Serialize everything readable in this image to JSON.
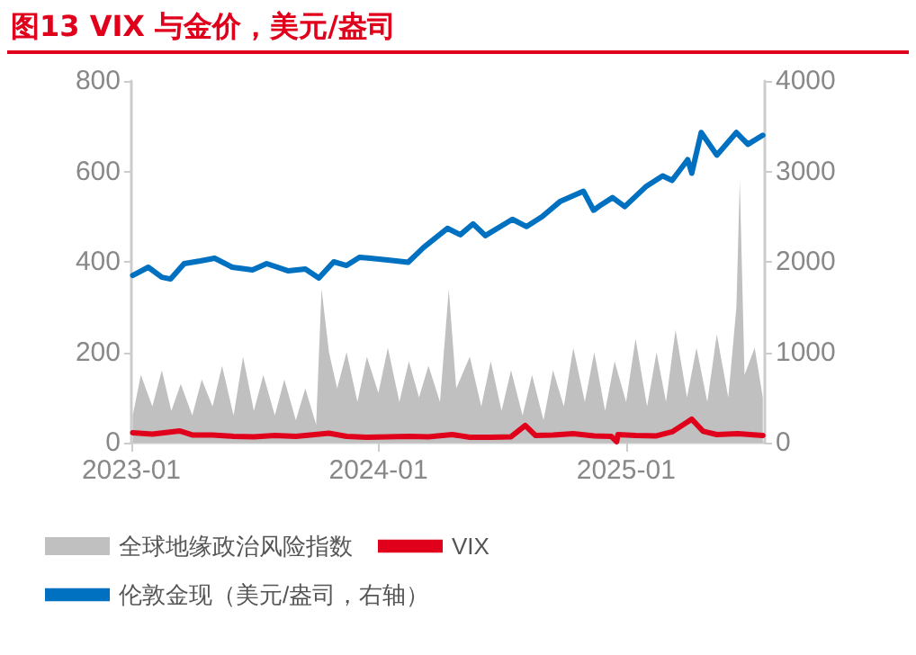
{
  "chart_data": {
    "type": "line",
    "title": "图13  VIX 与金价，美元/盎司",
    "xlim": [
      "2023-01-01",
      "2025-07-25"
    ],
    "xticks": [
      "2023-01",
      "2024-01",
      "2025-01"
    ],
    "ylim": [
      0,
      800
    ],
    "yticks": [
      0,
      200,
      400,
      600,
      800
    ],
    "y2lim": [
      0,
      4000
    ],
    "y2ticks": [
      0,
      1000,
      2000,
      3000,
      4000
    ],
    "grid": false,
    "legend": "bottom",
    "marker": "none",
    "series": [
      {
        "name": "全球地缘政治风险指数",
        "type": "area",
        "color": "#c0c0c0",
        "x": [
          "2023-01-03",
          "2023-01-15",
          "2023-02-01",
          "2023-02-15",
          "2023-03-01",
          "2023-03-15",
          "2023-04-01",
          "2023-04-15",
          "2023-05-01",
          "2023-05-15",
          "2023-06-01",
          "2023-06-15",
          "2023-07-01",
          "2023-07-15",
          "2023-08-01",
          "2023-08-15",
          "2023-09-01",
          "2023-09-15",
          "2023-10-01",
          "2023-10-09",
          "2023-10-20",
          "2023-11-01",
          "2023-11-15",
          "2023-12-01",
          "2023-12-15",
          "2024-01-01",
          "2024-01-15",
          "2024-02-01",
          "2024-02-15",
          "2024-03-01",
          "2024-03-15",
          "2024-04-01",
          "2024-04-14",
          "2024-04-25",
          "2024-05-15",
          "2024-06-01",
          "2024-06-15",
          "2024-07-01",
          "2024-07-15",
          "2024-08-01",
          "2024-08-15",
          "2024-09-01",
          "2024-09-15",
          "2024-10-01",
          "2024-10-15",
          "2024-11-01",
          "2024-11-15",
          "2024-12-01",
          "2024-12-15",
          "2025-01-01",
          "2025-01-15",
          "2025-02-01",
          "2025-02-15",
          "2025-03-01",
          "2025-03-15",
          "2025-04-01",
          "2025-04-15",
          "2025-05-01",
          "2025-05-15",
          "2025-06-01",
          "2025-06-13",
          "2025-06-18",
          "2025-06-25",
          "2025-07-10",
          "2025-07-22"
        ],
        "values": [
          60,
          150,
          80,
          160,
          70,
          130,
          60,
          140,
          80,
          170,
          60,
          190,
          70,
          150,
          60,
          140,
          50,
          120,
          40,
          340,
          200,
          120,
          200,
          90,
          190,
          110,
          210,
          90,
          180,
          100,
          170,
          90,
          340,
          120,
          190,
          80,
          180,
          70,
          160,
          60,
          150,
          50,
          160,
          80,
          210,
          90,
          200,
          70,
          180,
          90,
          230,
          80,
          200,
          90,
          250,
          100,
          210,
          90,
          240,
          100,
          300,
          580,
          150,
          210,
          100
        ]
      },
      {
        "name": "VIX",
        "color": "#e0001b",
        "x": [
          "2023-01-03",
          "2023-02-01",
          "2023-03-13",
          "2023-04-01",
          "2023-05-01",
          "2023-06-01",
          "2023-07-01",
          "2023-08-01",
          "2023-09-01",
          "2023-10-20",
          "2023-11-15",
          "2023-12-15",
          "2024-01-15",
          "2024-02-15",
          "2024-03-15",
          "2024-04-19",
          "2024-05-15",
          "2024-06-15",
          "2024-07-15",
          "2024-08-05",
          "2024-08-20",
          "2024-09-15",
          "2024-10-15",
          "2024-11-15",
          "2024-12-10",
          "2024-12-18",
          "2024-12-20",
          "2025-01-15",
          "2025-02-15",
          "2025-03-10",
          "2025-04-08",
          "2025-04-25",
          "2025-05-15",
          "2025-06-15",
          "2025-07-22"
        ],
        "values": [
          22,
          19,
          26,
          17,
          17,
          14,
          13,
          16,
          14,
          21,
          14,
          12,
          13,
          14,
          13,
          18,
          12,
          12,
          13,
          38,
          16,
          17,
          20,
          15,
          14,
          2,
          18,
          16,
          15,
          24,
          52,
          25,
          18,
          20,
          16
        ]
      },
      {
        "name": "伦敦金现（美元/盎司，右轴）",
        "axis": "y2",
        "color": "#0070c0",
        "x": [
          "2023-01-03",
          "2023-01-26",
          "2023-02-15",
          "2023-02-28",
          "2023-03-20",
          "2023-04-13",
          "2023-05-04",
          "2023-05-30",
          "2023-06-29",
          "2023-07-20",
          "2023-08-21",
          "2023-09-15",
          "2023-10-05",
          "2023-10-27",
          "2023-11-15",
          "2023-12-04",
          "2023-12-20",
          "2024-01-15",
          "2024-02-14",
          "2024-03-08",
          "2024-04-12",
          "2024-05-01",
          "2024-05-20",
          "2024-06-07",
          "2024-07-17",
          "2024-08-07",
          "2024-08-30",
          "2024-09-26",
          "2024-10-30",
          "2024-11-14",
          "2024-11-25",
          "2024-12-12",
          "2024-12-30",
          "2025-01-30",
          "2025-02-24",
          "2025-03-10",
          "2025-04-02",
          "2025-04-08",
          "2025-04-22",
          "2025-05-15",
          "2025-06-13",
          "2025-06-30",
          "2025-07-22"
        ],
        "values": [
          1850,
          1940,
          1830,
          1810,
          1980,
          2010,
          2040,
          1940,
          1910,
          1980,
          1900,
          1920,
          1820,
          2000,
          1960,
          2050,
          2040,
          2020,
          1995,
          2160,
          2370,
          2300,
          2420,
          2290,
          2470,
          2390,
          2500,
          2670,
          2780,
          2570,
          2630,
          2710,
          2610,
          2830,
          2950,
          2900,
          3130,
          2980,
          3430,
          3180,
          3430,
          3300,
          3400
        ]
      }
    ]
  }
}
